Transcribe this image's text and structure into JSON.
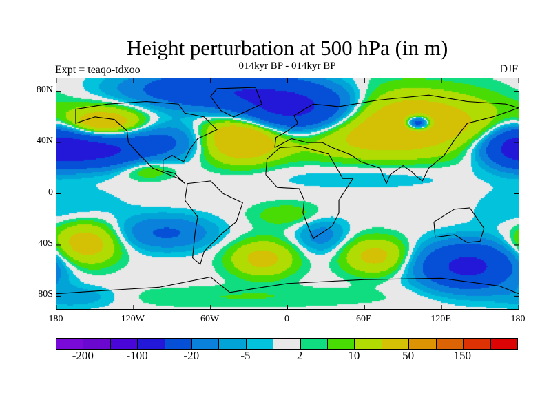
{
  "title": "Height perturbation at 500 hPa (in m)",
  "subtitle": "014kyr BP - 014kyr BP",
  "expt": "Expt = teaqo-tdxoo",
  "season": "DJF",
  "chart_data": {
    "type": "heatmap",
    "title": "Height perturbation at 500 hPa (in m)",
    "xlabel": "",
    "ylabel": "",
    "xlim": [
      -180,
      180
    ],
    "ylim": [
      -90,
      90
    ],
    "lat_ticks": [
      {
        "v": 80,
        "label": "80N"
      },
      {
        "v": 40,
        "label": "40N"
      },
      {
        "v": 0,
        "label": "0"
      },
      {
        "v": -40,
        "label": "40S"
      },
      {
        "v": -80,
        "label": "80S"
      }
    ],
    "lon_ticks": [
      {
        "v": -180,
        "label": "180"
      },
      {
        "v": -120,
        "label": "120W"
      },
      {
        "v": -60,
        "label": "60W"
      },
      {
        "v": 0,
        "label": "0"
      },
      {
        "v": 60,
        "label": "60E"
      },
      {
        "v": 120,
        "label": "120E"
      },
      {
        "v": 180,
        "label": "180"
      }
    ],
    "colorbar": {
      "colors": [
        "#7a0ad8",
        "#6a08d0",
        "#4a06d8",
        "#2418d8",
        "#0650d8",
        "#0a82dc",
        "#02a4d8",
        "#02c2dc",
        "#e8e8e8",
        "#10dc80",
        "#48dc04",
        "#b0dc04",
        "#d4c004",
        "#dc9404",
        "#dc6404",
        "#dc3204",
        "#dc0404"
      ],
      "levels": [
        -200,
        -150,
        -100,
        -50,
        -20,
        -10,
        -5,
        -2,
        2,
        5,
        10,
        20,
        50,
        100,
        150,
        200
      ],
      "labels": [
        {
          "after_box": 1,
          "label": "-200"
        },
        {
          "after_box": 3,
          "label": "-100"
        },
        {
          "after_box": 5,
          "label": "-20"
        },
        {
          "after_box": 7,
          "label": "-5"
        },
        {
          "after_box": 9,
          "label": "2"
        },
        {
          "after_box": 11,
          "label": "10"
        },
        {
          "after_box": 13,
          "label": "50"
        },
        {
          "after_box": 15,
          "label": "150"
        }
      ]
    },
    "field_anomalies_m": [
      {
        "lon": 5,
        "lat": 66,
        "amp": -75,
        "slon": 35,
        "slat": 13
      },
      {
        "lon": -60,
        "lat": 82,
        "amp": -40,
        "slon": 45,
        "slat": 10
      },
      {
        "lon": -143,
        "lat": 55,
        "amp": 35,
        "slon": 22,
        "slat": 9
      },
      {
        "lon": -158,
        "lat": 35,
        "amp": -70,
        "slon": 30,
        "slat": 9
      },
      {
        "lon": -95,
        "lat": 42,
        "amp": -22,
        "slon": 28,
        "slat": 10
      },
      {
        "lon": -38,
        "lat": 45,
        "amp": 45,
        "slon": 22,
        "slat": 13
      },
      {
        "lon": 75,
        "lat": 55,
        "amp": 40,
        "slon": 60,
        "slat": 18
      },
      {
        "lon": 101,
        "lat": 56,
        "amp": -60,
        "slon": 7,
        "slat": 4
      },
      {
        "lon": 178,
        "lat": 40,
        "amp": -35,
        "slon": 15,
        "slat": 12
      },
      {
        "lon": 60,
        "lat": 15,
        "amp": -6,
        "slon": 60,
        "slat": 8
      },
      {
        "lon": -170,
        "lat": -12,
        "amp": -6,
        "slon": 30,
        "slat": 12
      },
      {
        "lon": -158,
        "lat": -38,
        "amp": 30,
        "slon": 18,
        "slat": 12
      },
      {
        "lon": -95,
        "lat": -30,
        "amp": -22,
        "slon": 25,
        "slat": 9
      },
      {
        "lon": -20,
        "lat": -50,
        "amp": 25,
        "slon": 18,
        "slat": 10
      },
      {
        "lon": 26,
        "lat": -32,
        "amp": -14,
        "slon": 14,
        "slat": 10
      },
      {
        "lon": 68,
        "lat": -48,
        "amp": 25,
        "slon": 18,
        "slat": 10
      },
      {
        "lon": 140,
        "lat": -56,
        "amp": -60,
        "slon": 25,
        "slat": 12
      },
      {
        "lon": 0,
        "lat": -16,
        "amp": 9,
        "slon": 20,
        "slat": 7
      },
      {
        "lon": -110,
        "lat": 20,
        "amp": 12,
        "slon": 15,
        "slat": 6
      },
      {
        "lon": -40,
        "lat": -80,
        "amp": 5,
        "slon": 90,
        "slat": 6
      },
      {
        "lon": -165,
        "lat": -80,
        "amp": -10,
        "slon": 25,
        "slat": 6
      }
    ]
  }
}
